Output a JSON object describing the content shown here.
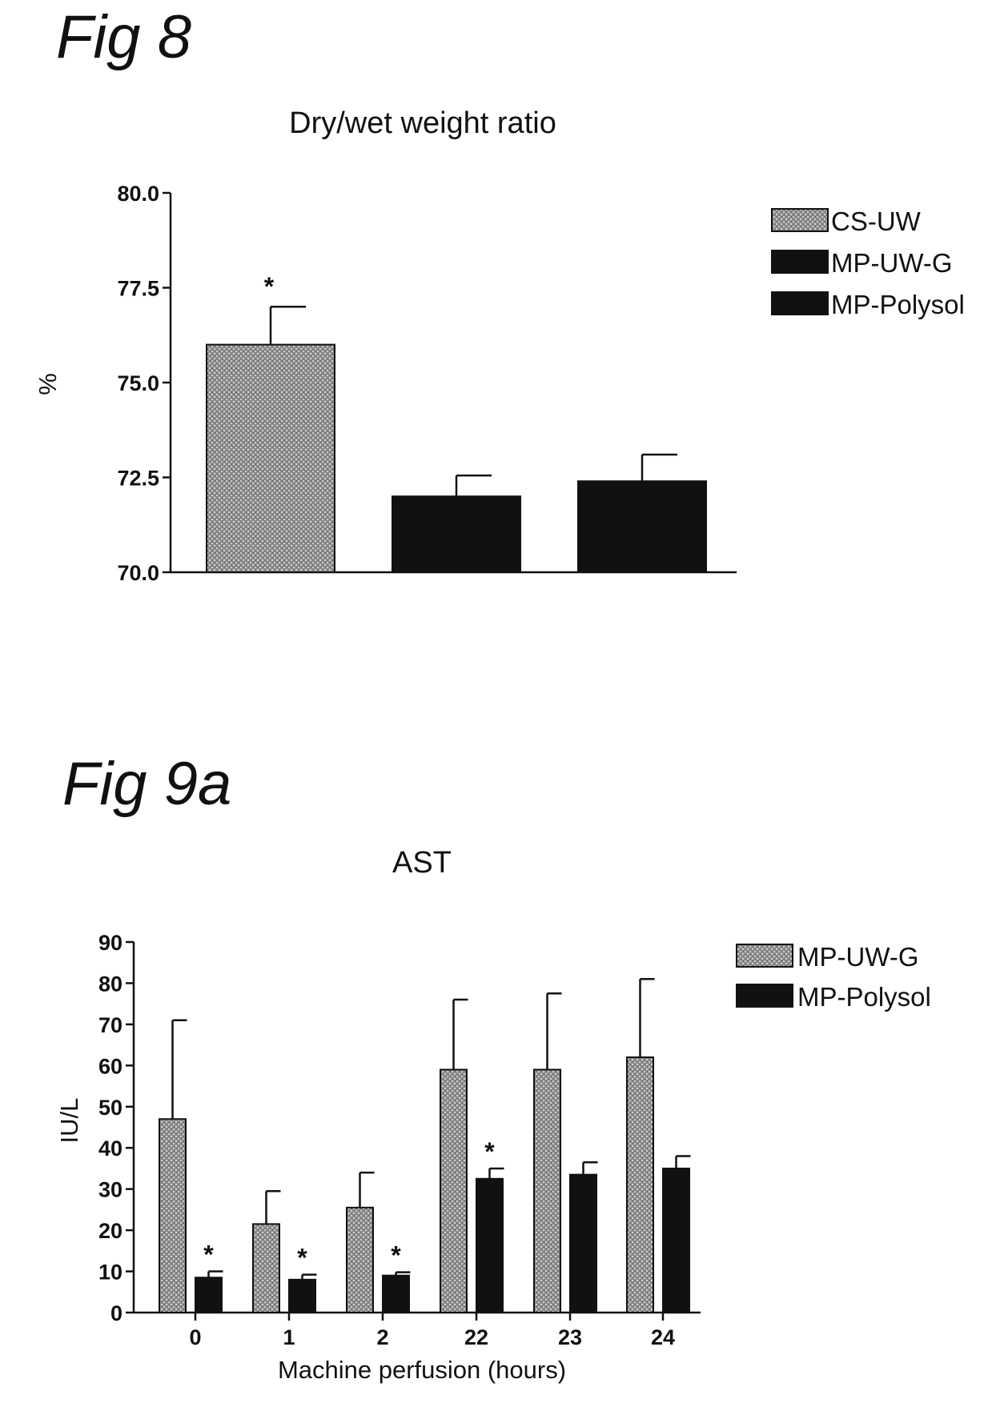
{
  "figures": [
    {
      "label": "Fig 8"
    },
    {
      "label": "Fig 9a"
    }
  ],
  "colors": {
    "grey_pattern": "#9a9a9a",
    "dark_bar": "#111111"
  },
  "chart_data": [
    {
      "type": "bar",
      "title": "Dry/wet weight ratio",
      "xlabel": "",
      "ylabel": "%",
      "ylim": [
        70.0,
        80.0
      ],
      "yticks": [
        "70.0",
        "72.5",
        "75.0",
        "77.5",
        "80.0"
      ],
      "grid": false,
      "legend_position": "top-right",
      "categories": [
        "CS-UW",
        "MP-UW-G",
        "MP-Polysol"
      ],
      "series": [
        {
          "name": "CS-UW",
          "values": [
            76.0,
            null,
            null
          ],
          "errors": [
            1.0,
            null,
            null
          ],
          "color": "#9a9a9a",
          "significant": [
            true,
            false,
            false
          ]
        },
        {
          "name": "MP-UW-G",
          "values": [
            null,
            72.0,
            null
          ],
          "errors": [
            null,
            0.55,
            null
          ],
          "color": "#111111",
          "significant": [
            false,
            false,
            false
          ]
        },
        {
          "name": "MP-Polysol",
          "values": [
            null,
            null,
            72.4
          ],
          "errors": [
            null,
            null,
            0.7
          ],
          "color": "#111111",
          "significant": [
            false,
            false,
            false
          ]
        }
      ],
      "annotation": "*"
    },
    {
      "type": "bar",
      "title": "AST",
      "xlabel": "Machine perfusion (hours)",
      "ylabel": "IU/L",
      "ylim": [
        0,
        90
      ],
      "yticks": [
        "0",
        "10",
        "20",
        "30",
        "40",
        "50",
        "60",
        "70",
        "80",
        "90"
      ],
      "grid": false,
      "legend_position": "top-right",
      "categories": [
        "0",
        "1",
        "2",
        "22",
        "23",
        "24"
      ],
      "series": [
        {
          "name": "MP-UW-G",
          "values": [
            47,
            21.5,
            25.5,
            59,
            59,
            62
          ],
          "errors": [
            24,
            8,
            8.5,
            17,
            18.5,
            19
          ],
          "color": "#9a9a9a",
          "significant": [
            false,
            false,
            false,
            false,
            false,
            false
          ]
        },
        {
          "name": "MP-Polysol",
          "values": [
            8.5,
            8,
            9,
            32.5,
            33.5,
            35
          ],
          "errors": [
            1.5,
            1.2,
            0.8,
            2.5,
            3,
            3
          ],
          "color": "#111111",
          "significant": [
            true,
            true,
            true,
            true,
            false,
            false
          ]
        }
      ],
      "annotation": "*"
    }
  ]
}
